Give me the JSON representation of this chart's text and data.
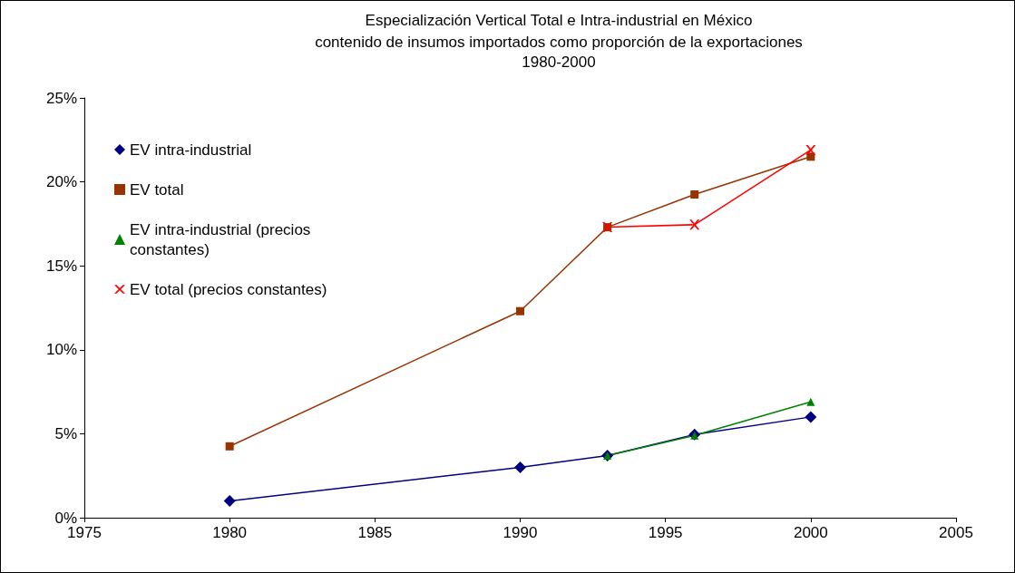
{
  "chart_data": {
    "type": "line",
    "title": "Especialización Vertical Total e Intra-industrial en México",
    "subtitle": "contenido de insumos importados como proporción de la exportaciones\n1980-2000",
    "x": [
      1980,
      1990,
      1993,
      1996,
      2000
    ],
    "series": [
      {
        "name": "EV intra-industrial",
        "color": "#000080",
        "marker": "diamond",
        "values": [
          1.0,
          3.0,
          3.7,
          4.95,
          6.0
        ]
      },
      {
        "name": "EV total",
        "color": "#993300",
        "marker": "square",
        "values": [
          4.25,
          12.3,
          17.3,
          19.25,
          21.5
        ]
      },
      {
        "name": "EV intra-industrial (precios constantes)",
        "color": "#008000",
        "marker": "triangle",
        "x": [
          1993,
          1996,
          2000
        ],
        "values": [
          3.7,
          4.9,
          6.9
        ]
      },
      {
        "name": "EV total (precios constantes)",
        "color": "#ff0000",
        "marker": "cross",
        "x": [
          1993,
          1996,
          2000
        ],
        "values": [
          17.3,
          17.45,
          21.9
        ]
      }
    ],
    "xlim": [
      1975,
      2005
    ],
    "xticks": [
      1975,
      1980,
      1985,
      1990,
      1995,
      2000,
      2005
    ],
    "ylim": [
      0,
      25
    ],
    "yticks": [
      {
        "value": 0,
        "label": "0%"
      },
      {
        "value": 5,
        "label": "5%"
      },
      {
        "value": 10,
        "label": "10%"
      },
      {
        "value": 15,
        "label": "15%"
      },
      {
        "value": 20,
        "label": "20%"
      },
      {
        "value": 25,
        "label": "25%"
      }
    ],
    "grid": false,
    "legend": "top left",
    "line_style": "solid"
  }
}
